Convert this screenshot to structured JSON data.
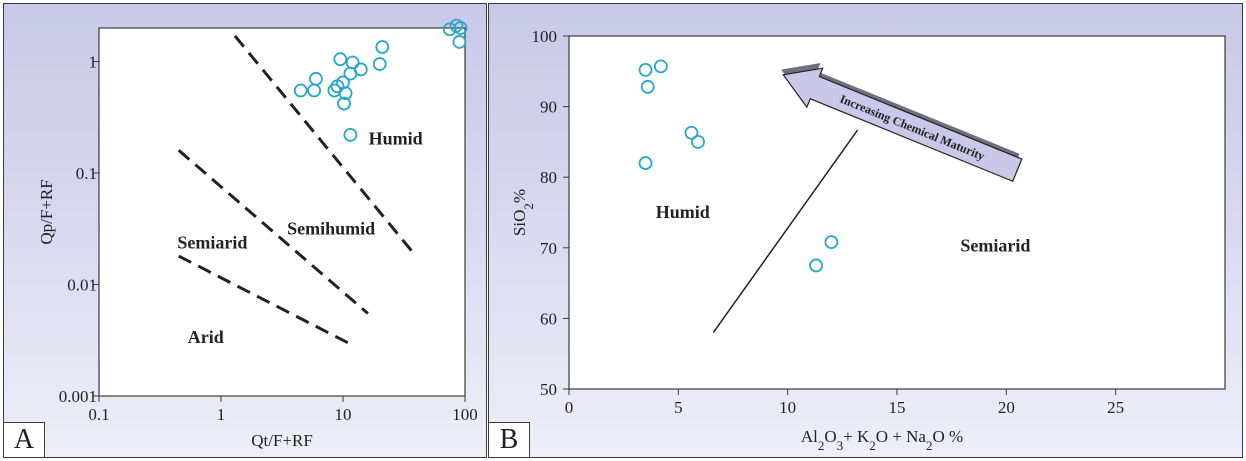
{
  "panels": [
    {
      "letter": "A"
    },
    {
      "letter": "B"
    }
  ],
  "chart_data": [
    {
      "type": "scatter",
      "panel": "A",
      "xlabel": "Qt/F+RF",
      "ylabel": "Qp/F+RF",
      "xscale": "log",
      "yscale": "log",
      "xlim": [
        0.1,
        100
      ],
      "ylim": [
        0.001,
        2
      ],
      "xticks": [
        "0.1",
        "1",
        "10",
        "100"
      ],
      "yticks": [
        "0.001",
        "0.01",
        "0.1",
        "1"
      ],
      "series": [
        {
          "points": [
            [
              4.5,
              0.55
            ],
            [
              5.8,
              0.55
            ],
            [
              6.0,
              0.7
            ],
            [
              8.5,
              0.55
            ],
            [
              9.0,
              0.6
            ],
            [
              9.5,
              1.05
            ],
            [
              10.0,
              0.65
            ],
            [
              10.2,
              0.42
            ],
            [
              10.5,
              0.52
            ],
            [
              11.5,
              0.78
            ],
            [
              12.0,
              0.98
            ],
            [
              11.5,
              0.22
            ],
            [
              14.0,
              0.85
            ],
            [
              20.0,
              0.95
            ],
            [
              21.0,
              1.35
            ],
            [
              75.0,
              1.95
            ],
            [
              85.0,
              2.1
            ],
            [
              90.0,
              1.5
            ],
            [
              92.0,
              2.0
            ]
          ]
        }
      ],
      "boundaries": [
        [
          [
            1.3,
            1.7
          ],
          [
            38,
            0.019
          ]
        ],
        [
          [
            0.45,
            0.16
          ],
          [
            16,
            0.0055
          ]
        ],
        [
          [
            0.45,
            0.018
          ],
          [
            11,
            0.003
          ]
        ]
      ],
      "regions": [
        {
          "label": "Humid",
          "x": 27,
          "y": 0.18
        },
        {
          "label": "Semihumid",
          "x": 8,
          "y": 0.028
        },
        {
          "label": "Semiarid",
          "x": 0.85,
          "y": 0.021
        },
        {
          "label": "Arid",
          "x": 0.75,
          "y": 0.003
        }
      ]
    },
    {
      "type": "scatter",
      "panel": "B",
      "xlabel": "Al2O3+ K2O + Na2O %",
      "ylabel": "SiO2%",
      "xlim": [
        0,
        30
      ],
      "ylim": [
        50,
        100
      ],
      "xticks": [
        0,
        5,
        10,
        15,
        20,
        25
      ],
      "yticks": [
        50,
        60,
        70,
        80,
        90,
        100
      ],
      "series": [
        {
          "points": [
            [
              3.5,
              95.2
            ],
            [
              4.2,
              95.7
            ],
            [
              3.6,
              92.8
            ],
            [
              5.6,
              86.3
            ],
            [
              5.9,
              85.0
            ],
            [
              3.5,
              82.0
            ],
            [
              12.0,
              70.8
            ],
            [
              11.3,
              67.5
            ]
          ]
        }
      ],
      "trend_line": [
        [
          6.6,
          58
        ],
        [
          13.2,
          86.7
        ]
      ],
      "arrow_label": "Increasing Chemical Maturity",
      "arrow": [
        [
          20.5,
          81
        ],
        [
          9.8,
          94.5
        ]
      ],
      "regions": [
        {
          "label": "Humid",
          "x": 5.2,
          "y": 74.2
        },
        {
          "label": "Semiarid",
          "x": 19.5,
          "y": 69.5
        }
      ]
    }
  ]
}
